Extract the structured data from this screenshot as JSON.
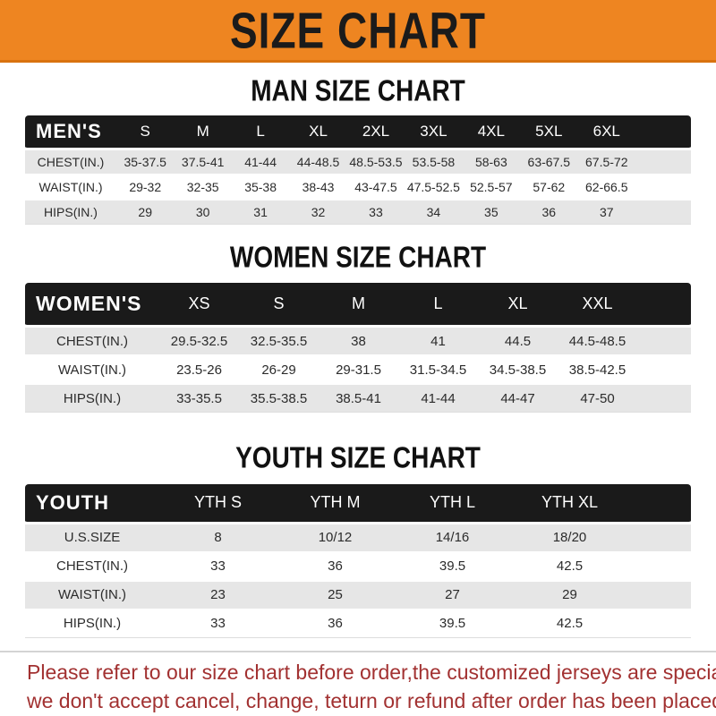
{
  "banner": {
    "title": "SIZE CHART",
    "bg_color": "#EE8521",
    "text_color": "#1B1B1B"
  },
  "men": {
    "heading": "MAN SIZE CHART",
    "table": {
      "label": "MEN'S",
      "columns": [
        "S",
        "M",
        "L",
        "XL",
        "2XL",
        "3XL",
        "4XL",
        "5XL",
        "6XL"
      ],
      "rows": [
        {
          "label": "CHEST(IN.)",
          "values": [
            "35-37.5",
            "37.5-41",
            "41-44",
            "44-48.5",
            "48.5-53.5",
            "53.5-58",
            "58-63",
            "63-67.5",
            "67.5-72"
          ]
        },
        {
          "label": "WAIST(IN.)",
          "values": [
            "29-32",
            "32-35",
            "35-38",
            "38-43",
            "43-47.5",
            "47.5-52.5",
            "52.5-57",
            "57-62",
            "62-66.5"
          ]
        },
        {
          "label": "HIPS(IN.)",
          "values": [
            "29",
            "30",
            "31",
            "32",
            "33",
            "34",
            "35",
            "36",
            "37"
          ]
        }
      ]
    }
  },
  "women": {
    "heading": "WOMEN SIZE CHART",
    "table": {
      "label": "WOMEN'S",
      "columns": [
        "XS",
        "S",
        "M",
        "L",
        "XL",
        "XXL"
      ],
      "rows": [
        {
          "label": "CHEST(IN.)",
          "values": [
            "29.5-32.5",
            "32.5-35.5",
            "38",
            "41",
            "44.5",
            "44.5-48.5"
          ]
        },
        {
          "label": "WAIST(IN.)",
          "values": [
            "23.5-26",
            "26-29",
            "29-31.5",
            "31.5-34.5",
            "34.5-38.5",
            "38.5-42.5"
          ]
        },
        {
          "label": "HIPS(IN.)",
          "values": [
            "33-35.5",
            "35.5-38.5",
            "38.5-41",
            "41-44",
            "44-47",
            "47-50"
          ]
        }
      ]
    }
  },
  "youth": {
    "heading": "YOUTH SIZE CHART",
    "table": {
      "label": "YOUTH",
      "columns": [
        "YTH S",
        "YTH M",
        "YTH L",
        "YTH XL"
      ],
      "rows": [
        {
          "label": "U.S.SIZE",
          "values": [
            "8",
            "10/12",
            "14/16",
            "18/20"
          ]
        },
        {
          "label": "CHEST(IN.)",
          "values": [
            "33",
            "36",
            "39.5",
            "42.5"
          ]
        },
        {
          "label": "WAIST(IN.)",
          "values": [
            "23",
            "25",
            "27",
            "29"
          ]
        },
        {
          "label": "HIPS(IN.)",
          "values": [
            "33",
            "36",
            "39.5",
            "42.5"
          ]
        }
      ]
    }
  },
  "footer": {
    "line1": "Please refer to our size chart before order,the customized jerseys are special products,",
    "line2": "we don't accept cancel, change, teturn or refund after order has been placed!",
    "text_color": "#A23131"
  }
}
